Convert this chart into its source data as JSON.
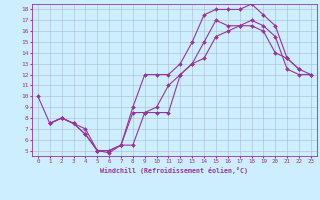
{
  "xlabel": "Windchill (Refroidissement éolien,°C)",
  "bg_color": "#cceeff",
  "line_color": "#993399",
  "grid_color": "#aabbcc",
  "xlim": [
    -0.5,
    23.5
  ],
  "ylim": [
    4.5,
    18.5
  ],
  "xticks": [
    0,
    1,
    2,
    3,
    4,
    5,
    6,
    7,
    8,
    9,
    10,
    11,
    12,
    13,
    14,
    15,
    16,
    17,
    18,
    19,
    20,
    21,
    22,
    23
  ],
  "yticks": [
    5,
    6,
    7,
    8,
    9,
    10,
    11,
    12,
    13,
    14,
    15,
    16,
    17,
    18
  ],
  "curve1_x": [
    0,
    1,
    2,
    3,
    4,
    5,
    6,
    7,
    8,
    9,
    10,
    11,
    12,
    13,
    14,
    15,
    16,
    17,
    18,
    19,
    20,
    21,
    22
  ],
  "curve1_y": [
    10,
    7.5,
    8.0,
    7.5,
    6.5,
    5.0,
    5.0,
    5.5,
    9.0,
    12.0,
    12.0,
    12.0,
    13.0,
    15.0,
    17.5,
    18.0,
    18.0,
    18.0,
    18.5,
    17.5,
    16.5,
    13.5,
    12.5
  ],
  "curve2_x": [
    1,
    2,
    3,
    4,
    5,
    6,
    7,
    8,
    9,
    10,
    11,
    12,
    13,
    14,
    15,
    16,
    17,
    18,
    19,
    20,
    21,
    22,
    23
  ],
  "curve2_y": [
    7.5,
    8.0,
    7.5,
    7.0,
    5.0,
    4.8,
    5.5,
    8.5,
    8.5,
    9.0,
    11.0,
    12.0,
    13.0,
    15.0,
    17.0,
    16.5,
    16.5,
    17.0,
    16.5,
    15.5,
    12.5,
    12.0,
    12.0
  ],
  "curve3_x": [
    1,
    2,
    3,
    4,
    5,
    6,
    7,
    8,
    9,
    10,
    11,
    12,
    13,
    14,
    15,
    16,
    17,
    18,
    19,
    20,
    21,
    22,
    23
  ],
  "curve3_y": [
    7.5,
    8.0,
    7.5,
    6.5,
    5.0,
    5.0,
    5.5,
    5.5,
    8.5,
    8.5,
    8.5,
    12.0,
    13.0,
    13.5,
    15.5,
    16.0,
    16.5,
    16.5,
    16.0,
    14.0,
    13.5,
    12.5,
    12.0
  ]
}
